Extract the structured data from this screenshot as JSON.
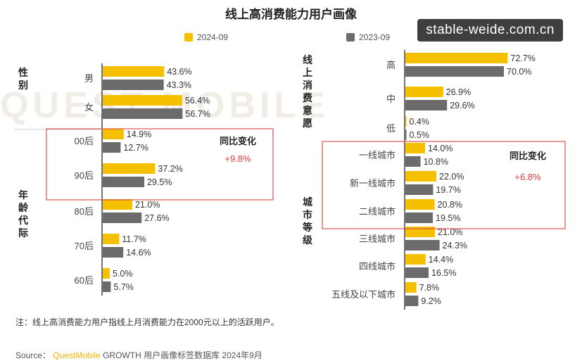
{
  "title": "线上高消费能力用户画像",
  "legend": [
    {
      "label": "2024-09",
      "color": "#f5c000"
    },
    {
      "label": "2023-09",
      "color": "#6b6b6b"
    }
  ],
  "watermark": {
    "logo_text": "QUEST MOBILE",
    "overlay": "stable-weide.com.cn"
  },
  "chart_data": [
    {
      "type": "bar",
      "orientation": "horizontal",
      "series": [
        {
          "name": "2024-09",
          "values": [
            43.6,
            56.4,
            14.9,
            37.2,
            21.0,
            11.7,
            5.0
          ]
        },
        {
          "name": "2023-09",
          "values": [
            43.3,
            56.7,
            12.7,
            29.5,
            27.6,
            14.6,
            5.7
          ]
        }
      ],
      "categories": [
        "男",
        "女",
        "00后",
        "90后",
        "80后",
        "70后",
        "60后"
      ],
      "groups": [
        {
          "label": "性别",
          "categories": [
            "男",
            "女"
          ]
        },
        {
          "label": "年龄代际",
          "categories": [
            "00后",
            "90后",
            "80后",
            "70后",
            "60后"
          ]
        }
      ],
      "annotation": {
        "title": "同比变化",
        "value": "+9.8%",
        "highlight": [
          "00后",
          "90后"
        ]
      }
    },
    {
      "type": "bar",
      "orientation": "horizontal",
      "series": [
        {
          "name": "2024-09",
          "values": [
            72.7,
            26.9,
            0.4,
            14.0,
            22.0,
            20.8,
            21.0,
            14.4,
            7.8
          ]
        },
        {
          "name": "2023-09",
          "values": [
            70.0,
            29.6,
            0.5,
            10.8,
            19.7,
            19.5,
            24.3,
            16.5,
            9.2
          ]
        }
      ],
      "categories": [
        "高",
        "中",
        "低",
        "一线城市",
        "新一线城市",
        "二线城市",
        "三线城市",
        "四线城市",
        "五线及以下城市"
      ],
      "groups": [
        {
          "label": "线上消费意愿",
          "categories": [
            "高",
            "中",
            "低"
          ]
        },
        {
          "label": "城市等级",
          "categories": [
            "一线城市",
            "新一线城市",
            "二线城市",
            "三线城市",
            "四线城市",
            "五线及以下城市"
          ]
        }
      ],
      "annotation": {
        "title": "同比变化",
        "value": "+6.8%",
        "highlight": [
          "一线城市",
          "新一线城市",
          "二线城市"
        ]
      }
    }
  ],
  "note": "注：线上高消费能力用户指线上月消费能力在2000元以上的活跃用户。",
  "source": {
    "prefix": "Source：",
    "brand": "QuestMobile",
    "rest": "GROWTH 用户画像标签数据库 2024年9月"
  }
}
